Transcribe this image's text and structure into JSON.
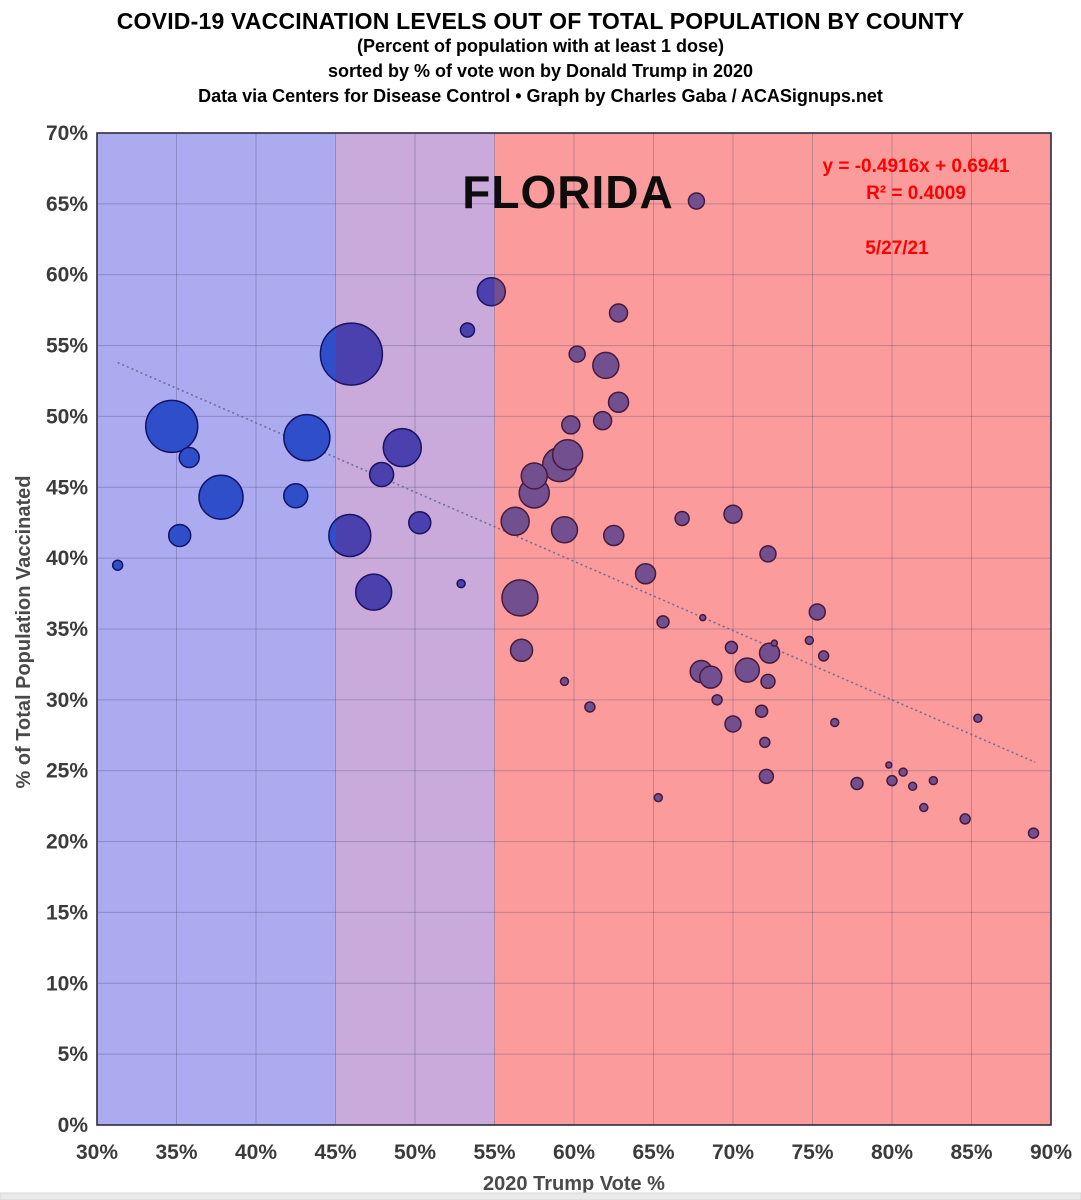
{
  "header": {
    "title": "COVID-19 VACCINATION LEVELS OUT OF TOTAL POPULATION BY COUNTY",
    "subtitle": "(Percent of population with at least 1 dose)",
    "sort_note": "sorted by % of vote won by Donald Trump in 2020",
    "credit": "Data via Centers for Disease Control • Graph by Charles Gaba / ACASignups.net"
  },
  "chart_data": {
    "type": "scatter",
    "title": "FLORIDA",
    "date_label": "5/27/21",
    "trend_equation": "y = -0.4916x + 0.6941",
    "r_squared": "R² = 0.4009",
    "xlabel": "2020 Trump Vote %",
    "ylabel": "% of Total Population Vaccinated",
    "xlim": [
      30,
      90
    ],
    "ylim": [
      0,
      70
    ],
    "x_ticks": [
      "30%",
      "35%",
      "40%",
      "45%",
      "50%",
      "55%",
      "60%",
      "65%",
      "70%",
      "75%",
      "80%",
      "85%",
      "90%"
    ],
    "y_ticks": [
      "0%",
      "5%",
      "10%",
      "15%",
      "20%",
      "25%",
      "30%",
      "35%",
      "40%",
      "45%",
      "50%",
      "55%",
      "60%",
      "65%",
      "70%"
    ],
    "grid": true,
    "legend_position": "none",
    "zones": [
      {
        "name": "blue-zone",
        "from": 30,
        "to": 45,
        "bg": "#acabf0",
        "bubble_fill": "#2f4fca",
        "bubble_stroke": "#141267"
      },
      {
        "name": "purple-zone",
        "from": 45,
        "to": 55,
        "bg": "#c9aada",
        "bubble_fill": "#4a40ae",
        "bubble_stroke": "#1c1260"
      },
      {
        "name": "red-zone",
        "from": 55,
        "to": 90,
        "bg": "#fb9b9b",
        "bubble_fill": "#72508f",
        "bubble_stroke": "#461a3d"
      }
    ],
    "trendline": {
      "x1": 31.3,
      "y1": 53.8,
      "x2": 89.0,
      "y2": 25.6,
      "style": "dotted",
      "color": "#62628e"
    },
    "points": [
      {
        "x": 31.3,
        "y": 39.5,
        "r": 5
      },
      {
        "x": 34.7,
        "y": 49.3,
        "r": 26
      },
      {
        "x": 35.8,
        "y": 47.1,
        "r": 10
      },
      {
        "x": 37.8,
        "y": 44.3,
        "r": 22
      },
      {
        "x": 35.2,
        "y": 41.6,
        "r": 11
      },
      {
        "x": 43.2,
        "y": 48.5,
        "r": 23
      },
      {
        "x": 42.5,
        "y": 44.4,
        "r": 12
      },
      {
        "x": 46.0,
        "y": 54.4,
        "r": 31
      },
      {
        "x": 45.9,
        "y": 41.6,
        "r": 21
      },
      {
        "x": 47.4,
        "y": 37.6,
        "r": 18
      },
      {
        "x": 47.9,
        "y": 45.9,
        "r": 12
      },
      {
        "x": 49.2,
        "y": 47.8,
        "r": 19
      },
      {
        "x": 50.3,
        "y": 42.5,
        "r": 11
      },
      {
        "x": 53.3,
        "y": 56.1,
        "r": 7
      },
      {
        "x": 52.9,
        "y": 38.2,
        "r": 4
      },
      {
        "x": 54.8,
        "y": 58.8,
        "r": 14
      },
      {
        "x": 67.7,
        "y": 65.2,
        "r": 8
      },
      {
        "x": 62.8,
        "y": 57.3,
        "r": 9
      },
      {
        "x": 60.2,
        "y": 54.4,
        "r": 8
      },
      {
        "x": 62.0,
        "y": 53.6,
        "r": 13
      },
      {
        "x": 62.8,
        "y": 51.0,
        "r": 10
      },
      {
        "x": 61.8,
        "y": 49.7,
        "r": 9
      },
      {
        "x": 59.8,
        "y": 49.4,
        "r": 9
      },
      {
        "x": 59.6,
        "y": 47.3,
        "r": 15
      },
      {
        "x": 59.1,
        "y": 46.6,
        "r": 17
      },
      {
        "x": 57.5,
        "y": 45.8,
        "r": 13
      },
      {
        "x": 57.5,
        "y": 44.6,
        "r": 15
      },
      {
        "x": 56.3,
        "y": 42.6,
        "r": 14
      },
      {
        "x": 59.4,
        "y": 42.0,
        "r": 13
      },
      {
        "x": 62.5,
        "y": 41.6,
        "r": 10
      },
      {
        "x": 66.8,
        "y": 42.8,
        "r": 7
      },
      {
        "x": 70.0,
        "y": 43.1,
        "r": 9
      },
      {
        "x": 72.2,
        "y": 40.3,
        "r": 8
      },
      {
        "x": 64.5,
        "y": 38.9,
        "r": 10
      },
      {
        "x": 56.6,
        "y": 37.2,
        "r": 18
      },
      {
        "x": 56.7,
        "y": 33.5,
        "r": 11
      },
      {
        "x": 59.4,
        "y": 31.3,
        "r": 4
      },
      {
        "x": 61.0,
        "y": 29.5,
        "r": 5
      },
      {
        "x": 65.6,
        "y": 35.5,
        "r": 6
      },
      {
        "x": 68.1,
        "y": 35.8,
        "r": 3
      },
      {
        "x": 75.3,
        "y": 36.2,
        "r": 8
      },
      {
        "x": 74.8,
        "y": 34.2,
        "r": 4
      },
      {
        "x": 69.9,
        "y": 33.7,
        "r": 6
      },
      {
        "x": 75.7,
        "y": 33.1,
        "r": 5
      },
      {
        "x": 72.6,
        "y": 34.0,
        "r": 3
      },
      {
        "x": 72.3,
        "y": 33.3,
        "r": 10
      },
      {
        "x": 68.0,
        "y": 32.0,
        "r": 11
      },
      {
        "x": 68.6,
        "y": 31.6,
        "r": 11
      },
      {
        "x": 70.9,
        "y": 32.1,
        "r": 12
      },
      {
        "x": 72.2,
        "y": 31.3,
        "r": 7
      },
      {
        "x": 69.0,
        "y": 30.0,
        "r": 5
      },
      {
        "x": 71.8,
        "y": 29.2,
        "r": 6
      },
      {
        "x": 70.0,
        "y": 28.3,
        "r": 8
      },
      {
        "x": 76.4,
        "y": 28.4,
        "r": 4
      },
      {
        "x": 85.4,
        "y": 28.7,
        "r": 4
      },
      {
        "x": 72.0,
        "y": 27.0,
        "r": 5
      },
      {
        "x": 72.1,
        "y": 24.6,
        "r": 7
      },
      {
        "x": 77.8,
        "y": 24.1,
        "r": 6
      },
      {
        "x": 79.8,
        "y": 25.4,
        "r": 3
      },
      {
        "x": 80.7,
        "y": 24.9,
        "r": 4
      },
      {
        "x": 80.0,
        "y": 24.3,
        "r": 5
      },
      {
        "x": 81.3,
        "y": 23.9,
        "r": 4
      },
      {
        "x": 82.6,
        "y": 24.3,
        "r": 4
      },
      {
        "x": 82.0,
        "y": 22.4,
        "r": 4
      },
      {
        "x": 84.6,
        "y": 21.6,
        "r": 5
      },
      {
        "x": 88.9,
        "y": 20.6,
        "r": 5
      },
      {
        "x": 65.3,
        "y": 23.1,
        "r": 4
      }
    ]
  }
}
